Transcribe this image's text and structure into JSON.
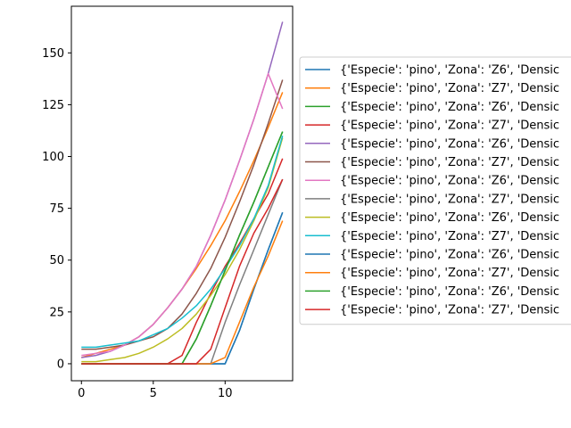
{
  "chart_data": {
    "type": "line",
    "title": "",
    "xlabel": "",
    "ylabel": "",
    "xlim": [
      -0.7,
      14.7
    ],
    "ylim": [
      -8.2,
      172.5
    ],
    "x_ticks": [
      0,
      5,
      10
    ],
    "y_ticks": [
      0,
      25,
      50,
      75,
      100,
      125,
      150
    ],
    "grid": false,
    "legend_position": "right",
    "x": [
      0,
      1,
      2,
      3,
      4,
      5,
      6,
      7,
      8,
      9,
      10,
      11,
      12,
      13,
      14
    ],
    "series": [
      {
        "name": "{'Especie': 'pino', 'Zona': 'Z6', 'Densic",
        "color": "#1f77b4",
        "values": [
          0,
          0,
          0,
          0,
          0,
          0,
          0,
          0,
          0,
          0,
          0,
          16,
          36,
          55,
          73
        ]
      },
      {
        "name": "{'Especie': 'pino', 'Zona': 'Z7', 'Densic",
        "color": "#ff7f0e",
        "values": [
          3,
          5,
          7,
          9,
          13,
          19,
          27,
          36,
          46,
          57,
          69,
          83,
          98,
          114,
          131
        ]
      },
      {
        "name": "{'Especie': 'pino', 'Zona': 'Z6', 'Densic",
        "color": "#2ca02c",
        "values": [
          0,
          0,
          0,
          0,
          0,
          0,
          0,
          0,
          12,
          28,
          45,
          62,
          78,
          95,
          112
        ]
      },
      {
        "name": "{'Especie': 'pino', 'Zona': 'Z7', 'Densic",
        "color": "#d62728",
        "values": [
          0,
          0,
          0,
          0,
          0,
          0,
          0,
          4,
          20,
          34,
          47,
          58,
          70,
          82,
          99
        ]
      },
      {
        "name": "{'Especie': 'pino', 'Zona': 'Z6', 'Densic",
        "color": "#9467bd",
        "values": [
          3,
          4,
          6,
          9,
          13,
          19,
          27,
          36,
          47,
          62,
          79,
          98,
          118,
          140,
          165
        ]
      },
      {
        "name": "{'Especie': 'pino', 'Zona': 'Z7', 'Densic",
        "color": "#8c564b",
        "values": [
          7,
          7,
          8,
          9,
          11,
          13,
          17,
          24,
          34,
          46,
          61,
          78,
          96,
          116,
          137
        ]
      },
      {
        "name": "{'Especie': 'pino', 'Zona': 'Z6', 'Densic",
        "color": "#e377c2",
        "values": [
          4,
          5,
          6,
          9,
          13,
          19,
          27,
          36,
          47,
          62,
          79,
          98,
          118,
          140,
          123
        ]
      },
      {
        "name": "{'Especie': 'pino', 'Zona': 'Z7', 'Densic",
        "color": "#7f7f7f",
        "values": [
          0,
          0,
          0,
          0,
          0,
          0,
          0,
          0,
          0,
          0,
          20,
          38,
          55,
          72,
          89
        ]
      },
      {
        "name": "{'Especie': 'pino', 'Zona': 'Z6', 'Densic",
        "color": "#bcbd22",
        "values": [
          1,
          1,
          2,
          3,
          5,
          8,
          12,
          17,
          24,
          33,
          43,
          55,
          69,
          85,
          109
        ]
      },
      {
        "name": "{'Especie': 'pino', 'Zona': 'Z7', 'Densic",
        "color": "#17becf",
        "values": [
          8,
          8,
          9,
          10,
          11,
          14,
          17,
          22,
          28,
          36,
          46,
          57,
          70,
          86,
          110
        ]
      },
      {
        "name": "{'Especie': 'pino', 'Zona': 'Z6', 'Densic",
        "color": "#1f77b4",
        "values": [
          0,
          0,
          0,
          0,
          0,
          0,
          0,
          0,
          0,
          0,
          0,
          16,
          36,
          55,
          73
        ]
      },
      {
        "name": "{'Especie': 'pino', 'Zona': 'Z7', 'Densic",
        "color": "#ff7f0e",
        "values": [
          0,
          0,
          0,
          0,
          0,
          0,
          0,
          0,
          0,
          0,
          3,
          20,
          37,
          52,
          69
        ]
      },
      {
        "name": "{'Especie': 'pino', 'Zona': 'Z6', 'Densic",
        "color": "#2ca02c",
        "values": [
          0,
          0,
          0,
          0,
          0,
          0,
          0,
          0,
          12,
          28,
          45,
          62,
          78,
          95,
          112
        ]
      },
      {
        "name": "{'Especie': 'pino', 'Zona': 'Z7', 'Densic",
        "color": "#d62728",
        "values": [
          0,
          0,
          0,
          0,
          0,
          0,
          0,
          0,
          0,
          7,
          27,
          47,
          63,
          75,
          89
        ]
      }
    ]
  }
}
